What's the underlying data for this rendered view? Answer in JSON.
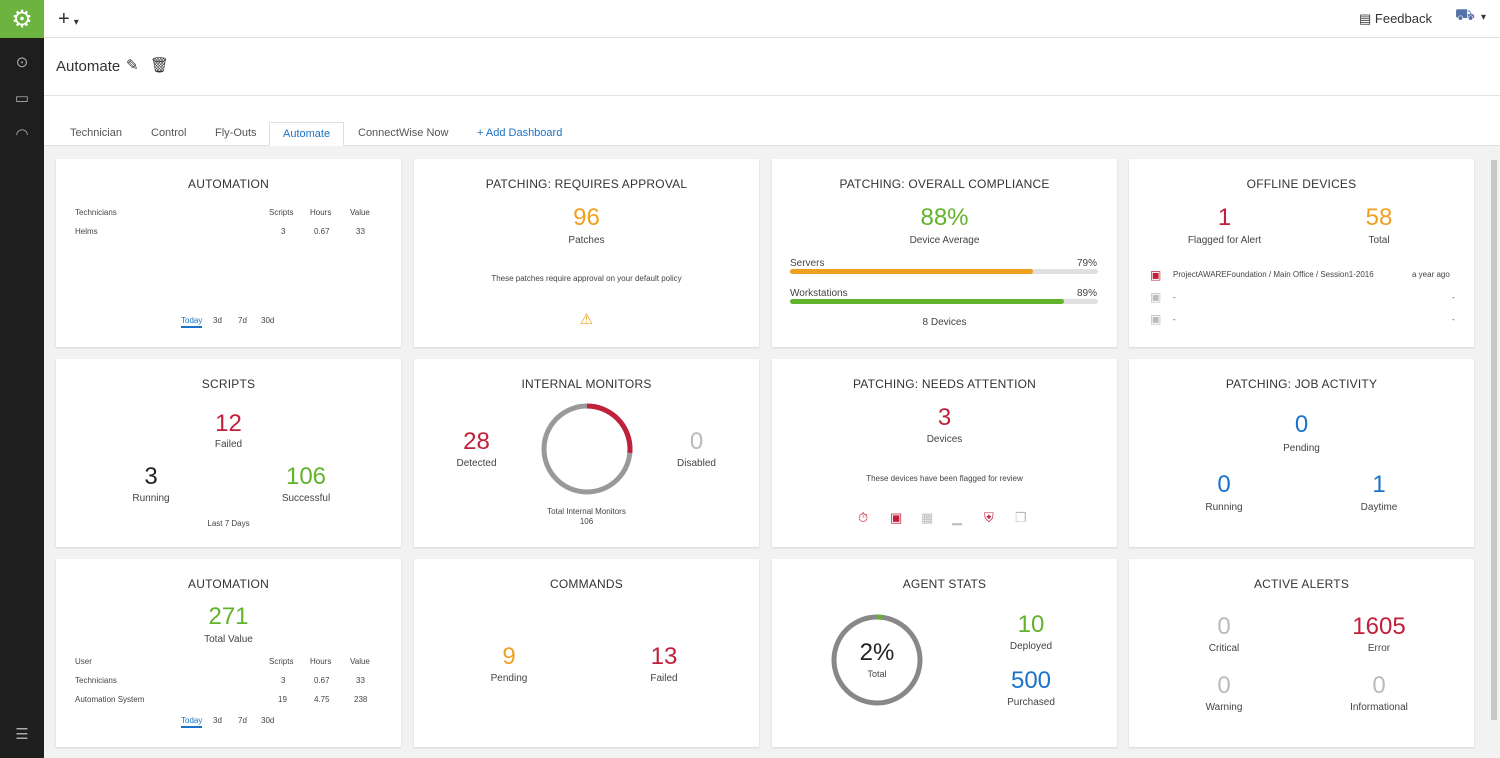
{
  "topbar": {
    "add_label": "+",
    "feedback": "Feedback"
  },
  "titlebar": {
    "title": "Automate"
  },
  "tabs": [
    "Technician",
    "Control",
    "Fly-Outs",
    "Automate",
    "ConnectWise Now"
  ],
  "add_dashboard": "+ Add Dashboard",
  "automation1": {
    "title": "AUTOMATION",
    "headers": [
      "Technicians",
      "Scripts",
      "Hours",
      "Value"
    ],
    "rows": [
      [
        "Helms",
        "3",
        "0.67",
        "33"
      ]
    ],
    "ranges": [
      "Today",
      "3d",
      "7d",
      "30d"
    ]
  },
  "patch_approval": {
    "title": "PATCHING: REQUIRES APPROVAL",
    "value": "96",
    "label": "Patches",
    "note": "These patches require approval on your default policy",
    "warn": "⚠"
  },
  "compliance": {
    "title": "PATCHING: OVERALL COMPLIANCE",
    "value": "88%",
    "label": "Device Average",
    "servers_label": "Servers",
    "servers_pct": "79%",
    "servers_frac": 0.79,
    "work_label": "Workstations",
    "work_pct": "89%",
    "work_frac": 0.89,
    "devices": "8 Devices"
  },
  "offline": {
    "title": "OFFLINE DEVICES",
    "flagged": "1",
    "flagged_label": "Flagged for Alert",
    "total": "58",
    "total_label": "Total",
    "rows": [
      {
        "name": "ProjectAWAREFoundation / Main Office / Session1-2016",
        "time": "a year ago"
      },
      {
        "name": "-",
        "time": "-"
      },
      {
        "name": "-",
        "time": "-"
      }
    ]
  },
  "scripts": {
    "title": "SCRIPTS",
    "failed": "12",
    "failed_label": "Failed",
    "running": "3",
    "running_label": "Running",
    "successful": "106",
    "successful_label": "Successful",
    "footer": "Last 7 Days"
  },
  "monitors": {
    "title": "INTERNAL MONITORS",
    "detected": "28",
    "detected_label": "Detected",
    "disabled": "0",
    "disabled_label": "Disabled",
    "total_label": "Total Internal Monitors",
    "total": "106",
    "detected_frac": 0.264
  },
  "needs_attention": {
    "title": "PATCHING: NEEDS ATTENTION",
    "value": "3",
    "label": "Devices",
    "note": "These devices have been flagged for review"
  },
  "job_activity": {
    "title": "PATCHING: JOB ACTIVITY",
    "pending": "0",
    "pending_label": "Pending",
    "running": "0",
    "running_label": "Running",
    "daytime": "1",
    "daytime_label": "Daytime"
  },
  "automation2": {
    "title": "AUTOMATION",
    "value": "271",
    "value_label": "Total Value",
    "headers": [
      "User",
      "Scripts",
      "Hours",
      "Value"
    ],
    "rows": [
      [
        "Technicians",
        "3",
        "0.67",
        "33"
      ],
      [
        "Automation System",
        "19",
        "4.75",
        "238"
      ]
    ],
    "ranges": [
      "Today",
      "3d",
      "7d",
      "30d"
    ]
  },
  "commands": {
    "title": "COMMANDS",
    "pending": "9",
    "pending_label": "Pending",
    "failed": "13",
    "failed_label": "Failed"
  },
  "agent_stats": {
    "title": "AGENT STATS",
    "pct": "2%",
    "pct_label": "Total",
    "pct_frac": 0.02,
    "deployed": "10",
    "deployed_label": "Deployed",
    "purchased": "500",
    "purchased_label": "Purchased"
  },
  "alerts": {
    "title": "ACTIVE ALERTS",
    "critical": "0",
    "critical_label": "Critical",
    "error": "1605",
    "error_label": "Error",
    "warning": "0",
    "warning_label": "Warning",
    "informational": "0",
    "informational_label": "Informational"
  },
  "colors": {
    "brand_green": "#6cb33f",
    "orange": "#f0a020",
    "green": "#62b32c",
    "red": "#c0203a",
    "blue": "#1a73c7"
  }
}
